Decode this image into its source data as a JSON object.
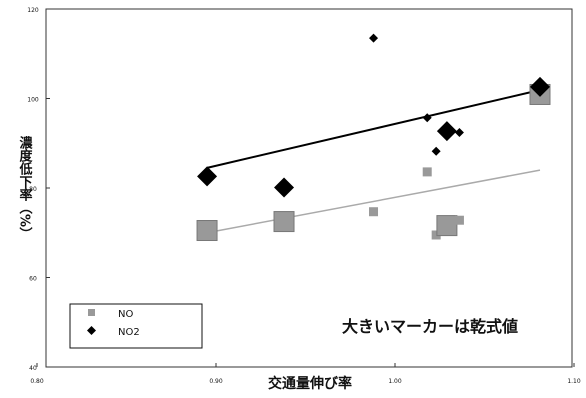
{
  "chart_data": {
    "type": "scatter",
    "xlabel": "交通量伸び率",
    "ylabel": "濃度低下率（%）",
    "annotation": "大きいマーカーは乾式値",
    "xlim": [
      0.8,
      1.1
    ],
    "ylim": [
      40,
      120
    ],
    "x_ticks": [
      "0.80",
      "0.90",
      "1.00",
      "1.10"
    ],
    "y_ticks": [
      "120",
      "100",
      "80",
      "60",
      "40"
    ],
    "legend": {
      "position": "bottom-left",
      "entries": [
        "NO",
        "NO2"
      ]
    },
    "grid": false,
    "series": [
      {
        "name": "NO",
        "marker": "square",
        "color": "#999999",
        "points": [
          {
            "x": 0.895,
            "y": 70.5,
            "large": true
          },
          {
            "x": 0.938,
            "y": 72.5,
            "large": true
          },
          {
            "x": 0.988,
            "y": 74.7,
            "large": false
          },
          {
            "x": 1.018,
            "y": 83.6,
            "large": false
          },
          {
            "x": 1.023,
            "y": 69.5,
            "large": false
          },
          {
            "x": 1.029,
            "y": 71.6,
            "large": true
          },
          {
            "x": 1.036,
            "y": 72.8,
            "large": false
          },
          {
            "x": 1.081,
            "y": 100.9,
            "large": true
          }
        ],
        "trendline": {
          "x": [
            0.895,
            1.081
          ],
          "y": [
            70.0,
            84.0
          ],
          "color": "#aaaaaa"
        }
      },
      {
        "name": "NO2",
        "marker": "diamond",
        "color": "#000000",
        "points": [
          {
            "x": 0.895,
            "y": 82.6,
            "large": true
          },
          {
            "x": 0.938,
            "y": 80.1,
            "large": true
          },
          {
            "x": 0.988,
            "y": 113.5,
            "large": false
          },
          {
            "x": 1.018,
            "y": 95.7,
            "large": false
          },
          {
            "x": 1.023,
            "y": 88.2,
            "large": false
          },
          {
            "x": 1.029,
            "y": 92.7,
            "large": true
          },
          {
            "x": 1.036,
            "y": 92.4,
            "large": false
          },
          {
            "x": 1.081,
            "y": 102.6,
            "large": true
          }
        ],
        "trendline": {
          "x": [
            0.895,
            1.081
          ],
          "y": [
            84.5,
            101.9
          ],
          "color": "#000000"
        }
      }
    ]
  }
}
